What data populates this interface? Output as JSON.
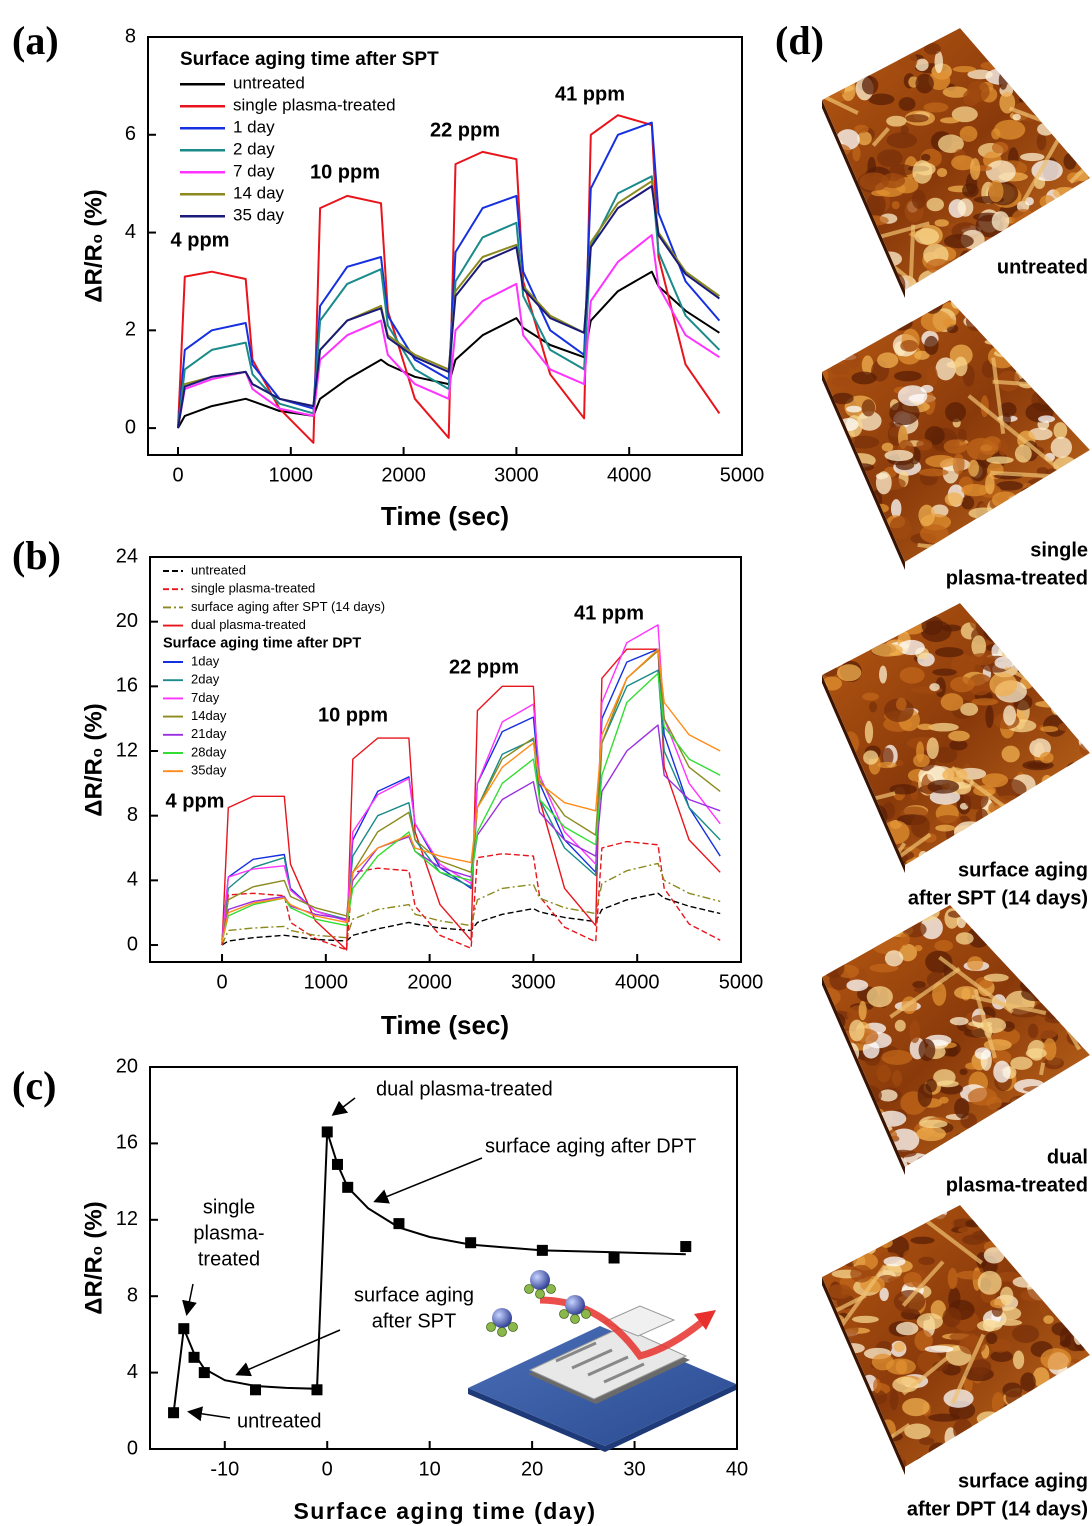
{
  "chart_data": [
    {
      "type": "line",
      "label": "(a)",
      "x_label": "Time (sec)",
      "y_label": "ΔR/R₀ (%)",
      "xlim": [
        -266,
        5000
      ],
      "ylim": [
        -0.55,
        8
      ],
      "xticks": [
        0,
        1000,
        2000,
        3000,
        4000,
        5000
      ],
      "yticks": [
        0,
        2,
        4,
        6,
        8
      ],
      "legend_title": "Surface aging time after SPT",
      "legend": "top-left",
      "annotations": [
        "4 ppm",
        "10 ppm",
        "22 ppm",
        "41 ppm"
      ],
      "x": [
        0,
        60,
        300,
        600,
        660,
        900,
        1200,
        1260,
        1500,
        1800,
        1860,
        2100,
        2400,
        2460,
        2700,
        3000,
        3060,
        3300,
        3600,
        3660,
        3900,
        4200,
        4260,
        4500,
        4800
      ],
      "series": [
        {
          "name": "untreated",
          "color": "#000000",
          "values": [
            0,
            0.25,
            0.45,
            0.6,
            0.55,
            0.35,
            0.25,
            0.6,
            1.0,
            1.4,
            1.3,
            1.05,
            0.9,
            1.4,
            1.9,
            2.25,
            2.05,
            1.7,
            1.45,
            2.2,
            2.8,
            3.2,
            2.9,
            2.4,
            1.95
          ]
        },
        {
          "name": "single plasma-treated",
          "color": "#e8141c",
          "values": [
            0,
            3.1,
            3.2,
            3.05,
            1.4,
            0.4,
            -0.3,
            4.5,
            4.75,
            4.6,
            2.4,
            0.6,
            -0.2,
            5.4,
            5.65,
            5.5,
            3.0,
            1.1,
            0.2,
            6.0,
            6.4,
            6.2,
            3.5,
            1.3,
            0.3
          ]
        },
        {
          "name": "1 day",
          "color": "#1530e0",
          "values": [
            0,
            1.6,
            2.0,
            2.15,
            1.3,
            0.6,
            0.4,
            2.5,
            3.3,
            3.5,
            2.3,
            1.4,
            1.0,
            3.6,
            4.5,
            4.75,
            3.2,
            2.0,
            1.5,
            4.9,
            6.0,
            6.25,
            4.4,
            3.0,
            2.2
          ]
        },
        {
          "name": "2 day",
          "color": "#1a8a8a",
          "values": [
            0,
            1.2,
            1.6,
            1.75,
            1.1,
            0.5,
            0.3,
            2.2,
            2.95,
            3.25,
            2.1,
            1.2,
            0.8,
            3.0,
            3.9,
            4.2,
            2.7,
            1.6,
            1.2,
            3.7,
            4.8,
            5.15,
            3.6,
            2.3,
            1.6
          ]
        },
        {
          "name": "7 day",
          "color": "#ff33ff",
          "values": [
            0,
            0.8,
            1.0,
            1.15,
            0.8,
            0.4,
            0.25,
            1.4,
            1.9,
            2.2,
            1.5,
            0.9,
            0.6,
            2.0,
            2.6,
            2.95,
            1.9,
            1.2,
            0.9,
            2.6,
            3.4,
            3.95,
            2.9,
            1.9,
            1.45
          ]
        },
        {
          "name": "14 day",
          "color": "#8c8a1e",
          "values": [
            0,
            0.9,
            1.05,
            1.15,
            0.9,
            0.6,
            0.45,
            1.6,
            2.2,
            2.5,
            1.9,
            1.5,
            1.2,
            2.8,
            3.5,
            3.75,
            2.9,
            2.3,
            1.95,
            3.8,
            4.6,
            5.05,
            4.0,
            3.2,
            2.7
          ]
        },
        {
          "name": "35 day",
          "color": "#1a1a7a",
          "values": [
            0,
            0.85,
            1.05,
            1.15,
            0.9,
            0.6,
            0.45,
            1.6,
            2.2,
            2.45,
            1.85,
            1.45,
            1.15,
            2.7,
            3.4,
            3.7,
            2.85,
            2.25,
            1.95,
            3.7,
            4.5,
            4.95,
            3.95,
            3.15,
            2.65
          ]
        }
      ]
    },
    {
      "type": "line",
      "label": "(b)",
      "x_label": "Time (sec)",
      "y_label": "ΔR/R₀ (%)",
      "xlim": [
        -694,
        5000
      ],
      "ylim": [
        -1.05,
        24
      ],
      "xticks": [
        0,
        1000,
        2000,
        3000,
        4000,
        5000
      ],
      "yticks": [
        0,
        4,
        8,
        12,
        16,
        20,
        24
      ],
      "legend_title": "Surface aging time after DPT",
      "legend": "top-left",
      "annotations": [
        "4 ppm",
        "10 ppm",
        "22 ppm",
        "41 ppm"
      ],
      "x": [
        0,
        60,
        300,
        600,
        660,
        900,
        1200,
        1260,
        1500,
        1800,
        1860,
        2100,
        2400,
        2460,
        2700,
        3000,
        3060,
        3300,
        3600,
        3660,
        3900,
        4200,
        4260,
        4500,
        4800
      ],
      "series": [
        {
          "name": "untreated",
          "color": "#000000",
          "dash": "dashed",
          "values": [
            0,
            0.25,
            0.45,
            0.6,
            0.55,
            0.35,
            0.25,
            0.6,
            1.0,
            1.4,
            1.3,
            1.05,
            0.9,
            1.4,
            1.9,
            2.25,
            2.05,
            1.7,
            1.45,
            2.2,
            2.8,
            3.2,
            2.9,
            2.4,
            1.95
          ]
        },
        {
          "name": "single plasma-treated",
          "color": "#e8141c",
          "dash": "dashed",
          "values": [
            0,
            3.1,
            3.2,
            3.05,
            1.4,
            0.4,
            -0.3,
            4.5,
            4.75,
            4.6,
            2.4,
            0.6,
            -0.2,
            5.4,
            5.65,
            5.5,
            3.0,
            1.1,
            0.2,
            6.0,
            6.4,
            6.2,
            3.5,
            1.3,
            0.3
          ]
        },
        {
          "name": "surface aging after SPT (14 days)",
          "color": "#8c8a1e",
          "dash": "dashdot",
          "values": [
            0,
            0.9,
            1.05,
            1.15,
            0.9,
            0.6,
            0.45,
            1.6,
            2.2,
            2.5,
            1.9,
            1.5,
            1.2,
            2.8,
            3.5,
            3.75,
            2.9,
            2.3,
            1.95,
            3.8,
            4.6,
            5.05,
            4.0,
            3.2,
            2.7
          ]
        },
        {
          "name": "dual plasma-treated",
          "color": "#e8141c",
          "values": [
            0,
            8.5,
            9.2,
            9.2,
            5.0,
            1.5,
            -0.3,
            11.5,
            12.8,
            12.8,
            7.0,
            2.5,
            0.3,
            14.5,
            16.0,
            16.0,
            9.0,
            3.5,
            1.2,
            16.5,
            18.3,
            18.3,
            11.0,
            6.5,
            4.5
          ]
        },
        {
          "name": "1day",
          "color": "#1530e0",
          "values": [
            0.3,
            4.2,
            5.3,
            5.6,
            3.5,
            2.1,
            1.5,
            6.5,
            9.5,
            10.4,
            7.5,
            4.8,
            3.5,
            10.0,
            13.2,
            14.1,
            10.0,
            6.5,
            4.5,
            14.0,
            17.5,
            18.3,
            13.0,
            8.5,
            5.5
          ]
        },
        {
          "name": "2day",
          "color": "#1a8a8a",
          "values": [
            0.3,
            3.5,
            4.8,
            5.4,
            3.4,
            2.1,
            1.6,
            5.5,
            8.0,
            8.8,
            6.5,
            4.5,
            3.6,
            8.5,
            11.8,
            12.7,
            9.0,
            6.0,
            4.3,
            12.5,
            16.0,
            17.0,
            12.0,
            8.5,
            6.5
          ]
        },
        {
          "name": "7day",
          "color": "#ff33ff",
          "values": [
            0.3,
            4.2,
            4.7,
            4.9,
            3.4,
            2.1,
            1.5,
            7.0,
            9.3,
            10.3,
            7.5,
            5.0,
            3.8,
            10.0,
            13.8,
            14.9,
            10.5,
            7.0,
            5.0,
            15.0,
            18.7,
            19.8,
            14.0,
            10.0,
            7.5
          ]
        },
        {
          "name": "14day",
          "color": "#8c8a1e",
          "values": [
            0.2,
            2.8,
            3.6,
            4.0,
            3.0,
            2.3,
            1.8,
            4.5,
            7.0,
            8.2,
            6.5,
            5.2,
            4.5,
            8.5,
            11.5,
            12.8,
            10.2,
            8.0,
            6.8,
            12.5,
            16.5,
            18.2,
            14.0,
            11.0,
            9.5
          ]
        },
        {
          "name": "21day",
          "color": "#9b2fe0",
          "values": [
            0.2,
            2.2,
            2.7,
            3.0,
            2.4,
            1.9,
            1.6,
            4.0,
            6.0,
            6.7,
            5.8,
            4.8,
            4.2,
            6.8,
            9.0,
            10.1,
            8.2,
            6.5,
            5.5,
            9.5,
            12.0,
            13.6,
            10.5,
            9.0,
            8.3
          ]
        },
        {
          "name": "28day",
          "color": "#33dd33",
          "values": [
            0.2,
            1.8,
            2.5,
            2.9,
            2.3,
            1.6,
            1.2,
            3.5,
            5.5,
            7.0,
            5.8,
            4.5,
            4.0,
            7.0,
            10.0,
            11.5,
            9.0,
            7.3,
            6.2,
            10.5,
            15.0,
            16.8,
            13.5,
            11.5,
            10.5
          ]
        },
        {
          "name": "35day",
          "color": "#ff8c1a",
          "values": [
            0.2,
            2.0,
            2.6,
            2.9,
            2.5,
            1.8,
            1.4,
            4.5,
            6.0,
            6.8,
            6.0,
            5.5,
            5.1,
            8.5,
            11.0,
            12.5,
            10.0,
            8.8,
            8.3,
            13.0,
            16.5,
            18.3,
            15.0,
            13.0,
            12.0
          ]
        }
      ]
    },
    {
      "type": "scatter",
      "label": "(c)",
      "x_label": "Surface aging time (day)",
      "y_label": "ΔR/R₀ (%)",
      "xlim": [
        -17.3,
        40
      ],
      "ylim": [
        0,
        20
      ],
      "xticks": [
        -10,
        0,
        10,
        20,
        30,
        40
      ],
      "yticks": [
        0,
        4,
        8,
        12,
        16,
        20
      ],
      "annotations": [
        [
          "dual plasma-treated"
        ],
        [
          "surface aging after DPT"
        ],
        [
          "single",
          "plasma-",
          "treated"
        ],
        [
          "surface aging",
          "after SPT"
        ],
        [
          "untreated"
        ]
      ],
      "series": [
        {
          "color": "#000000",
          "marker": "square",
          "x": [
            -15,
            -14,
            -13,
            -12,
            -7,
            -1,
            0,
            1,
            2,
            7,
            14,
            21,
            28,
            35
          ],
          "values": [
            1.9,
            6.3,
            4.8,
            4.0,
            3.1,
            3.1,
            16.6,
            14.9,
            13.7,
            11.8,
            10.8,
            10.4,
            10.0,
            10.6
          ]
        },
        {
          "color": "#000000",
          "marker": "line",
          "x": [
            -15,
            -14,
            -13,
            -12,
            -10,
            -7,
            -4,
            -1,
            0,
            1,
            2,
            4,
            7,
            10,
            14,
            21,
            28,
            35
          ],
          "values": [
            1.9,
            6.3,
            5.0,
            4.2,
            3.6,
            3.3,
            3.2,
            3.15,
            16.6,
            14.9,
            13.7,
            12.6,
            11.6,
            11.1,
            10.7,
            10.4,
            10.3,
            10.2
          ]
        }
      ]
    }
  ],
  "afm_panel": {
    "label": "(d)",
    "captions": [
      [
        "untreated"
      ],
      [
        "single",
        "plasma-treated"
      ],
      [
        "surface aging",
        "after SPT (14 days)"
      ],
      [
        "dual",
        "plasma-treated"
      ],
      [
        "surface aging",
        "after DPT (14 days)"
      ]
    ]
  }
}
